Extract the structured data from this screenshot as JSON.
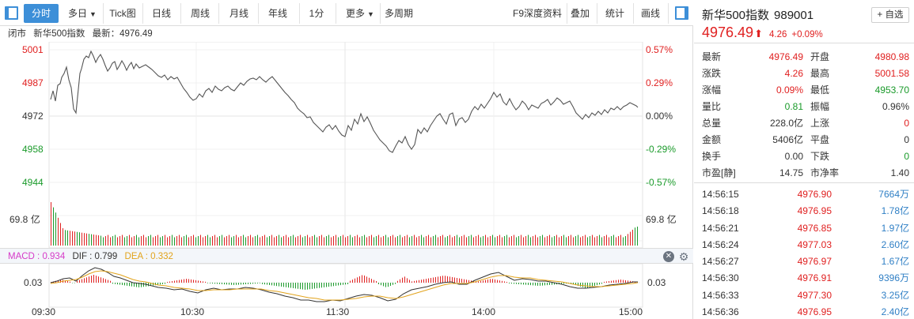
{
  "toolbar": {
    "items": [
      {
        "label": "分时",
        "active": true
      },
      {
        "label": "多日",
        "caret": true
      },
      {
        "label": "Tick图"
      },
      {
        "label": "日线"
      },
      {
        "label": "周线"
      },
      {
        "label": "月线"
      },
      {
        "label": "年线"
      },
      {
        "label": "1分"
      },
      {
        "label": "更多",
        "caret": true
      },
      {
        "label": "多周期"
      }
    ],
    "right_items": [
      "F9深度资料",
      "叠加",
      "统计",
      "画线"
    ]
  },
  "infobar": {
    "status": "闭市",
    "name": "新华500指数",
    "latest_label": "最新：4976.49"
  },
  "chart": {
    "price_axis": [
      "5001",
      "4987",
      "4972",
      "4958",
      "4944"
    ],
    "pct_axis": [
      "0.57%",
      "0.29%",
      "0.00%",
      "-0.29%",
      "-0.57%"
    ],
    "volume_label": "69.8 亿",
    "macd_axis_label": "0.03",
    "time_axis": [
      "09:30",
      "10:30",
      "11:30",
      "14:00",
      "15:00"
    ],
    "colors": {
      "up": "#e02020",
      "down": "#1a9a2a",
      "line": "#555555",
      "macd_dif": "#333333",
      "macd_dea": "#e2a31b",
      "macd_label": "#d63ac8"
    }
  },
  "macd": {
    "macd": "MACD : 0.934",
    "dif": "DIF : 0.799",
    "dea": "DEA : 0.332"
  },
  "stock": {
    "name": "新华500指数",
    "code": "989001",
    "fav_label": "+ 自选",
    "price": "4976.49",
    "arrow": "⬆",
    "change": "4.26",
    "change_pct": "+0.09%"
  },
  "quote": [
    {
      "l1": "最新",
      "v1": "4976.49",
      "c1": "red",
      "l2": "开盘",
      "v2": "4980.98",
      "c2": "red"
    },
    {
      "l1": "涨跌",
      "v1": "4.26",
      "c1": "red",
      "l2": "最高",
      "v2": "5001.58",
      "c2": "red"
    },
    {
      "l1": "涨幅",
      "v1": "0.09%",
      "c1": "red",
      "l2": "最低",
      "v2": "4953.70",
      "c2": "green"
    },
    {
      "l1": "量比",
      "v1": "0.81",
      "c1": "green",
      "l2": "振幅",
      "v2": "0.96%",
      "c2": "dark"
    },
    {
      "l1": "总量",
      "v1": "228.0亿",
      "c1": "dark",
      "l2": "上涨",
      "v2": "0",
      "c2": "red"
    },
    {
      "l1": "金额",
      "v1": "5406亿",
      "c1": "dark",
      "l2": "平盘",
      "v2": "0",
      "c2": "dark"
    },
    {
      "l1": "换手",
      "v1": "0.00",
      "c1": "dark",
      "l2": "下跌",
      "v2": "0",
      "c2": "green"
    },
    {
      "l1": "市盈[静]",
      "v1": "14.75",
      "c1": "dark",
      "l2": "市净率",
      "v2": "1.40",
      "c2": "dark"
    }
  ],
  "ticks": [
    {
      "time": "14:56:15",
      "price": "4976.90",
      "vol": "7664万"
    },
    {
      "time": "14:56:18",
      "price": "4976.95",
      "vol": "1.78亿"
    },
    {
      "time": "14:56:21",
      "price": "4976.85",
      "vol": "1.97亿"
    },
    {
      "time": "14:56:24",
      "price": "4977.03",
      "vol": "2.60亿"
    },
    {
      "time": "14:56:27",
      "price": "4976.97",
      "vol": "1.67亿"
    },
    {
      "time": "14:56:30",
      "price": "4976.91",
      "vol": "9396万"
    },
    {
      "time": "14:56:33",
      "price": "4977.30",
      "vol": "3.25亿"
    },
    {
      "time": "14:56:36",
      "price": "4976.95",
      "vol": "2.40亿"
    }
  ]
}
